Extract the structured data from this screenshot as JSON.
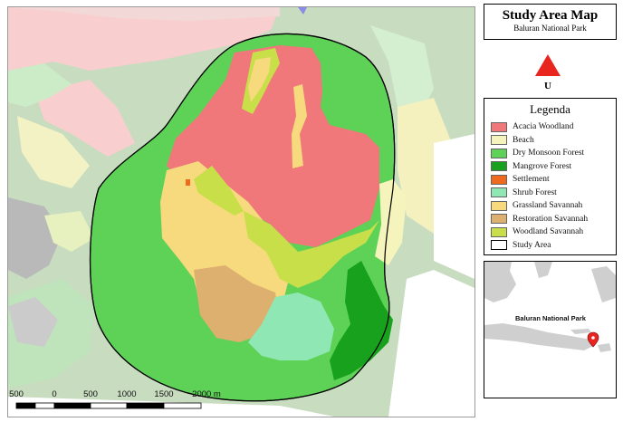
{
  "title": {
    "main": "Study Area Map",
    "sub": "Baluran National Park"
  },
  "north_arrow": {
    "label": "U",
    "color": "#e8251e"
  },
  "legend": {
    "title": "Legenda",
    "items": [
      {
        "label": "Acacia Woodland",
        "color": "#f0787a"
      },
      {
        "label": "Beach",
        "color": "#f5f4bc"
      },
      {
        "label": "Dry Monsoon Forest",
        "color": "#5ed157"
      },
      {
        "label": "Mangrove Forest",
        "color": "#17a11c"
      },
      {
        "label": "Settlement",
        "color": "#ef6a1c"
      },
      {
        "label": "Shrub Forest",
        "color": "#8fe8b4"
      },
      {
        "label": "Grassland Savannah",
        "color": "#f7d97e"
      },
      {
        "label": "Restoration Savannah",
        "color": "#deb070"
      },
      {
        "label": "Woodland Savannah",
        "color": "#c9df4a"
      },
      {
        "label": "Study Area",
        "color": "#ffffff"
      }
    ]
  },
  "inset": {
    "label": "Baluran National Park",
    "marker_color": "#e8251e"
  },
  "scale_bar": {
    "ticks": [
      "500",
      "0",
      "500",
      "1000",
      "1500",
      "2000 m"
    ]
  }
}
